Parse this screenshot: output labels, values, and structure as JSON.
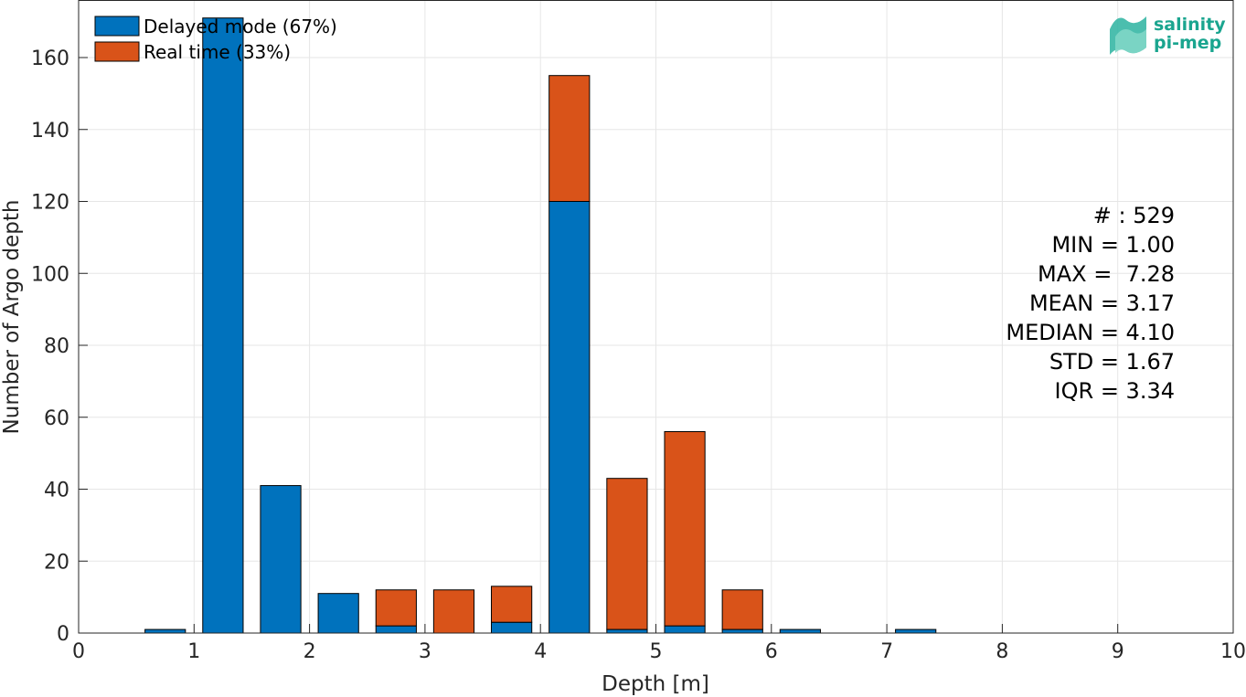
{
  "chart_data": {
    "type": "bar",
    "stacked": true,
    "xlabel": "Depth [m]",
    "ylabel": "Number of Argo depth",
    "xlim": [
      0,
      10
    ],
    "ylim": [
      0,
      176
    ],
    "xticks": [
      "0",
      "1",
      "2",
      "3",
      "4",
      "5",
      "6",
      "7",
      "8",
      "9",
      "10"
    ],
    "yticks": [
      "0",
      "20",
      "40",
      "60",
      "80",
      "100",
      "120",
      "140",
      "160"
    ],
    "grid": true,
    "legend_position": "top-left",
    "bin_width": 0.5,
    "x": [
      0.75,
      1.25,
      1.75,
      2.25,
      2.75,
      3.25,
      3.75,
      4.25,
      4.75,
      5.25,
      5.75,
      6.25,
      7.25
    ],
    "series": [
      {
        "name": "Delayed mode (67%)",
        "color": "#0072bd",
        "values": [
          1,
          171,
          41,
          11,
          2,
          0,
          3,
          120,
          1,
          2,
          1,
          1,
          1
        ]
      },
      {
        "name": "Real time (33%)",
        "color": "#d95319",
        "values": [
          0,
          0,
          0,
          0,
          10,
          12,
          10,
          35,
          42,
          54,
          11,
          0,
          0
        ]
      }
    ],
    "stats": [
      "# : 529",
      "MIN = 1.00",
      "MAX =  7.28",
      "MEAN = 3.17",
      "MEDIAN = 4.10",
      "STD = 1.67",
      "IQR = 3.34"
    ]
  },
  "logo": {
    "line1": "salinity",
    "line2": "pi-mep",
    "color": "#1aa58f"
  }
}
